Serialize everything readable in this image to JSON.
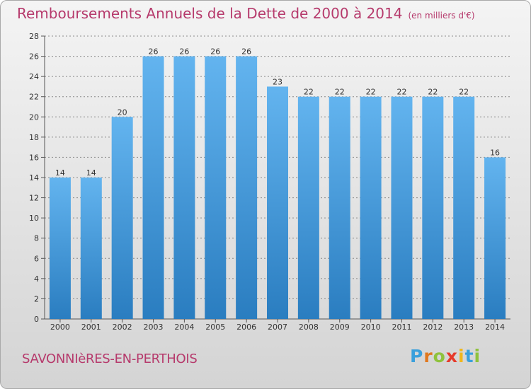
{
  "header": {
    "title": "Remboursements Annuels de la Dette de 2000 à 2014",
    "subtitle": "(en milliers d'€)"
  },
  "footer": {
    "town": "SAVONNIèRES-EN-PERTHOIS",
    "logo_letters": [
      "P",
      "r",
      "o",
      "x",
      "i",
      "t",
      "i"
    ]
  },
  "colors": {
    "title": "#b63a6c",
    "bar_top": "#63b4ef",
    "bar_bottom": "#2a7dc0",
    "grid": "#8a8a8a",
    "logo": [
      "#3aa0dc",
      "#e0781e",
      "#8fc23d",
      "#e63a2b",
      "#f0b71c",
      "#3aa0dc",
      "#8fc23d"
    ]
  },
  "chart_data": {
    "type": "bar",
    "title": "Remboursements Annuels de la Dette de 2000 à 2014",
    "categories": [
      "2000",
      "2001",
      "2002",
      "2003",
      "2004",
      "2005",
      "2006",
      "2007",
      "2008",
      "2009",
      "2010",
      "2011",
      "2012",
      "2013",
      "2014"
    ],
    "values": [
      14,
      14,
      20,
      26,
      26,
      26,
      26,
      23,
      22,
      22,
      22,
      22,
      22,
      22,
      16
    ],
    "ylim": [
      0,
      28
    ],
    "yticks": [
      0,
      2,
      4,
      6,
      8,
      10,
      12,
      14,
      16,
      18,
      20,
      22,
      24,
      26,
      28
    ],
    "grid": true,
    "data_labels": true
  }
}
